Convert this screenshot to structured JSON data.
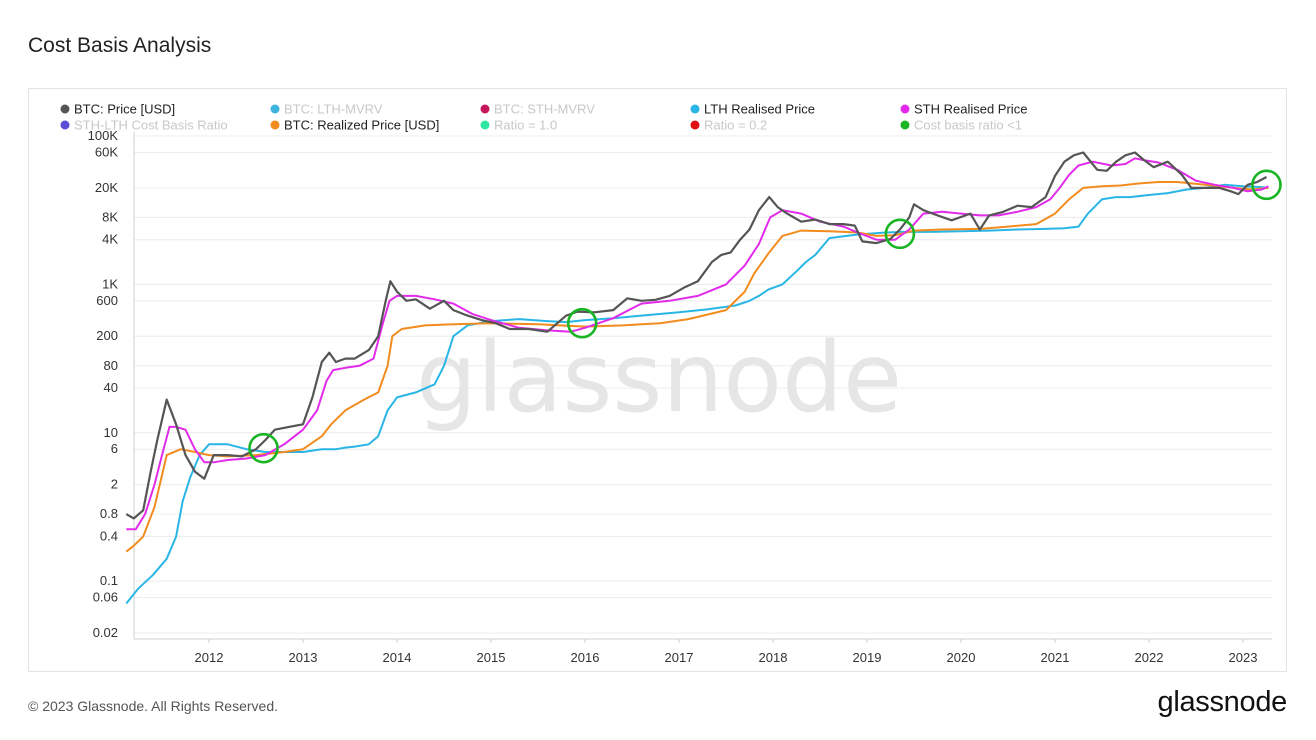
{
  "page": {
    "title": "Cost Basis Analysis",
    "footer": "© 2023 Glassnode. All Rights Reserved.",
    "logo": "glassnode",
    "watermark": "glassnode"
  },
  "chart_data": {
    "type": "line",
    "title": "Cost Basis Analysis",
    "xlabel": "",
    "ylabel": "",
    "y_scale": "log",
    "ylim": [
      0.015,
      150000
    ],
    "xlim": [
      2011.1,
      2023.3
    ],
    "grid": true,
    "legend_position": "top",
    "x_ticks": [
      "2012",
      "2013",
      "2014",
      "2015",
      "2016",
      "2017",
      "2018",
      "2019",
      "2020",
      "2021",
      "2022",
      "2023"
    ],
    "y_ticks": [
      "100K",
      "60K",
      "20K",
      "8K",
      "4K",
      "1K",
      "600",
      "200",
      "80",
      "40",
      "10",
      "6",
      "2",
      "0.8",
      "0.4",
      "0.1",
      "0.06",
      "0.02"
    ],
    "legend": [
      {
        "label": "BTC: Price [USD]",
        "color": "#555555",
        "active": true
      },
      {
        "label": "BTC: LTH-MVRV",
        "color": "#3cb4e0",
        "active": false
      },
      {
        "label": "BTC: STH-MVRV",
        "color": "#c2185b",
        "active": false
      },
      {
        "label": "LTH Realised Price",
        "color": "#29b6e6",
        "active": true
      },
      {
        "label": "STH Realised Price",
        "color": "#e22bea",
        "active": true
      },
      {
        "label": "STH-LTH Cost Basis Ratio",
        "color": "#5b4fd8",
        "active": false
      },
      {
        "label": "BTC: Realized Price [USD]",
        "color": "#f28c1e",
        "active": true
      },
      {
        "label": "Ratio = 1.0",
        "color": "#2fe6a0",
        "active": false
      },
      {
        "label": "Ratio = 0.2",
        "color": "#e01010",
        "active": false
      },
      {
        "label": "Cost basis ratio <1",
        "color": "#19b524",
        "active": false
      }
    ],
    "series": [
      {
        "name": "BTC: Price [USD]",
        "color": "#555555",
        "x": [
          2011.12,
          2011.2,
          2011.3,
          2011.38,
          2011.45,
          2011.55,
          2011.65,
          2011.75,
          2011.85,
          2011.95,
          2012.05,
          2012.2,
          2012.35,
          2012.5,
          2012.6,
          2012.7,
          2012.85,
          2013.0,
          2013.1,
          2013.2,
          2013.28,
          2013.35,
          2013.45,
          2013.55,
          2013.7,
          2013.8,
          2013.88,
          2013.93,
          2014.0,
          2014.1,
          2014.2,
          2014.35,
          2014.5,
          2014.6,
          2014.75,
          2014.9,
          2015.05,
          2015.2,
          2015.4,
          2015.6,
          2015.8,
          2015.92,
          2016.1,
          2016.3,
          2016.45,
          2016.6,
          2016.75,
          2016.9,
          2017.05,
          2017.2,
          2017.35,
          2017.45,
          2017.55,
          2017.65,
          2017.75,
          2017.85,
          2017.96,
          2018.05,
          2018.15,
          2018.3,
          2018.45,
          2018.6,
          2018.75,
          2018.87,
          2018.95,
          2019.1,
          2019.25,
          2019.35,
          2019.45,
          2019.5,
          2019.6,
          2019.75,
          2019.9,
          2020.1,
          2020.2,
          2020.3,
          2020.45,
          2020.6,
          2020.75,
          2020.9,
          2021.0,
          2021.1,
          2021.2,
          2021.3,
          2021.45,
          2021.55,
          2021.65,
          2021.75,
          2021.85,
          2021.95,
          2022.05,
          2022.2,
          2022.35,
          2022.45,
          2022.6,
          2022.75,
          2022.87,
          2022.95,
          2023.05,
          2023.15,
          2023.25
        ],
        "y": [
          0.8,
          0.7,
          0.9,
          3,
          8,
          28,
          13,
          5,
          3,
          2.4,
          5,
          5,
          4.8,
          6,
          8,
          11,
          12,
          13,
          30,
          90,
          120,
          90,
          100,
          100,
          130,
          200,
          600,
          1100,
          800,
          600,
          630,
          470,
          600,
          450,
          380,
          330,
          300,
          250,
          250,
          230,
          380,
          430,
          420,
          450,
          650,
          600,
          620,
          700,
          900,
          1100,
          2000,
          2500,
          2700,
          4000,
          5500,
          10000,
          15000,
          11000,
          9000,
          7000,
          7500,
          6500,
          6500,
          6200,
          3800,
          3600,
          4100,
          5500,
          8000,
          12000,
          10000,
          8500,
          7300,
          9000,
          5500,
          8500,
          9500,
          11500,
          11000,
          15000,
          29000,
          45000,
          55000,
          60000,
          35000,
          34000,
          45000,
          55000,
          60000,
          47000,
          38000,
          45000,
          30000,
          20000,
          20000,
          20000,
          18000,
          16500,
          22000,
          24000,
          28000
        ]
      },
      {
        "name": "LTH Realised Price",
        "color": "#29b6e6",
        "x": [
          2011.12,
          2011.25,
          2011.4,
          2011.55,
          2011.65,
          2011.72,
          2011.8,
          2011.9,
          2012.0,
          2012.2,
          2012.4,
          2012.6,
          2012.8,
          2013.0,
          2013.2,
          2013.35,
          2013.45,
          2013.55,
          2013.7,
          2013.8,
          2013.9,
          2014.0,
          2014.2,
          2014.4,
          2014.5,
          2014.6,
          2014.75,
          2015.0,
          2015.3,
          2015.6,
          2015.8,
          2016.0,
          2016.3,
          2016.6,
          2017.0,
          2017.3,
          2017.6,
          2017.75,
          2017.85,
          2017.95,
          2018.1,
          2018.25,
          2018.35,
          2018.45,
          2018.6,
          2018.9,
          2019.2,
          2019.4,
          2019.7,
          2020.0,
          2020.3,
          2020.6,
          2020.9,
          2021.1,
          2021.25,
          2021.35,
          2021.5,
          2021.65,
          2021.8,
          2022.0,
          2022.2,
          2022.4,
          2022.6,
          2022.8,
          2023.0,
          2023.2,
          2023.25
        ],
        "y": [
          0.05,
          0.08,
          0.12,
          0.2,
          0.4,
          1.2,
          2.5,
          5,
          7,
          7,
          6,
          5.5,
          5.5,
          5.5,
          6,
          6,
          6.3,
          6.5,
          7,
          9,
          20,
          30,
          35,
          45,
          80,
          200,
          280,
          320,
          340,
          320,
          310,
          330,
          350,
          380,
          420,
          460,
          520,
          600,
          700,
          850,
          1000,
          1500,
          2000,
          2500,
          4200,
          4700,
          5000,
          5100,
          5100,
          5200,
          5300,
          5500,
          5600,
          5700,
          6000,
          9000,
          14000,
          15000,
          15000,
          16000,
          17000,
          19000,
          20000,
          22000,
          21000,
          20500,
          20000
        ]
      },
      {
        "name": "STH Realised Price",
        "color": "#e22bea",
        "x": [
          2011.12,
          2011.22,
          2011.32,
          2011.42,
          2011.5,
          2011.58,
          2011.65,
          2011.75,
          2011.85,
          2011.95,
          2012.05,
          2012.2,
          2012.4,
          2012.6,
          2012.8,
          2013.0,
          2013.15,
          2013.25,
          2013.32,
          2013.45,
          2013.6,
          2013.75,
          2013.85,
          2013.92,
          2014.0,
          2014.2,
          2014.4,
          2014.6,
          2014.8,
          2015.0,
          2015.3,
          2015.6,
          2015.85,
          2016.0,
          2016.3,
          2016.6,
          2016.9,
          2017.2,
          2017.5,
          2017.7,
          2017.85,
          2017.97,
          2018.1,
          2018.3,
          2018.5,
          2018.75,
          2018.9,
          2019.1,
          2019.3,
          2019.45,
          2019.6,
          2019.8,
          2020.0,
          2020.2,
          2020.4,
          2020.6,
          2020.8,
          2020.95,
          2021.05,
          2021.15,
          2021.25,
          2021.4,
          2021.6,
          2021.75,
          2021.85,
          2021.95,
          2022.1,
          2022.3,
          2022.5,
          2022.7,
          2022.9,
          2023.05,
          2023.2,
          2023.27
        ],
        "y": [
          0.5,
          0.5,
          0.8,
          2,
          5,
          12,
          12,
          11,
          6,
          4,
          4,
          4.3,
          4.5,
          5,
          7,
          11,
          20,
          50,
          70,
          75,
          80,
          100,
          300,
          600,
          700,
          700,
          630,
          550,
          400,
          330,
          260,
          240,
          230,
          260,
          350,
          550,
          600,
          700,
          1000,
          1800,
          3500,
          8000,
          10000,
          9000,
          7000,
          6000,
          5000,
          4000,
          4000,
          5500,
          9000,
          9500,
          9000,
          8500,
          8500,
          9500,
          11000,
          14000,
          20000,
          30000,
          40000,
          45000,
          40000,
          42000,
          50000,
          47000,
          44000,
          35000,
          25000,
          22000,
          20000,
          18000,
          19000,
          21000
        ]
      },
      {
        "name": "BTC: Realized Price [USD]",
        "color": "#f28c1e",
        "x": [
          2011.12,
          2011.2,
          2011.3,
          2011.42,
          2011.55,
          2011.7,
          2011.85,
          2012.0,
          2012.2,
          2012.5,
          2012.8,
          2013.0,
          2013.2,
          2013.3,
          2013.45,
          2013.65,
          2013.8,
          2013.9,
          2013.95,
          2014.05,
          2014.3,
          2014.6,
          2015.0,
          2015.5,
          2016.0,
          2016.4,
          2016.8,
          2017.1,
          2017.5,
          2017.7,
          2017.8,
          2017.95,
          2018.1,
          2018.3,
          2018.6,
          2018.9,
          2019.1,
          2019.3,
          2019.5,
          2019.8,
          2020.2,
          2020.5,
          2020.8,
          2021.0,
          2021.15,
          2021.3,
          2021.5,
          2021.7,
          2021.9,
          2022.1,
          2022.3,
          2022.6,
          2022.9,
          2023.1,
          2023.27
        ],
        "y": [
          0.25,
          0.3,
          0.4,
          1,
          5,
          6,
          5.5,
          5,
          4.8,
          5,
          5.5,
          6,
          9,
          13,
          20,
          28,
          35,
          80,
          200,
          250,
          280,
          290,
          300,
          290,
          270,
          280,
          300,
          340,
          450,
          800,
          1400,
          2600,
          4500,
          5300,
          5200,
          5000,
          4500,
          4600,
          5300,
          5500,
          5600,
          6000,
          6500,
          9000,
          14000,
          20000,
          21000,
          21500,
          23000,
          24000,
          24000,
          22000,
          20000,
          19000,
          20000
        ]
      }
    ],
    "annotations": [
      {
        "label": "Cost basis ratio <1",
        "x": 2012.58,
        "y": 6.2,
        "color": "#19b524"
      },
      {
        "label": "Cost basis ratio <1",
        "x": 2015.97,
        "y": 300,
        "color": "#19b524"
      },
      {
        "label": "Cost basis ratio <1",
        "x": 2019.35,
        "y": 4800,
        "color": "#19b524"
      },
      {
        "label": "Cost basis ratio <1",
        "x": 2023.25,
        "y": 22000,
        "color": "#19b524"
      }
    ]
  }
}
